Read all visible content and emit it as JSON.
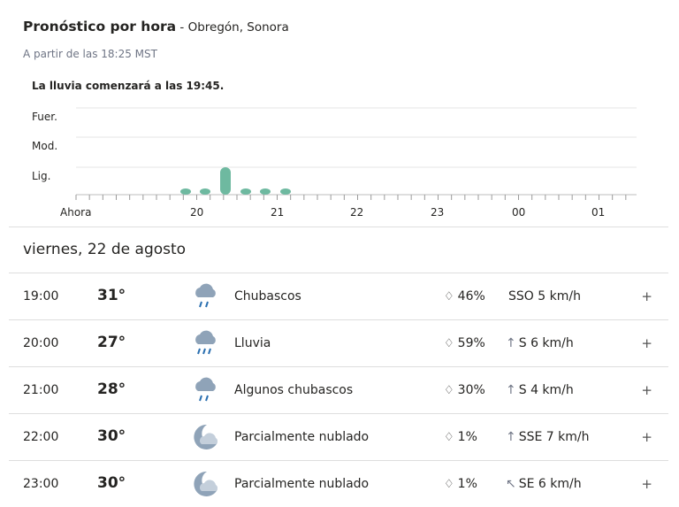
{
  "header": {
    "title": "Pronóstico por hora",
    "separator": " - ",
    "location": "Obregón, Sonora",
    "as_of": "A partir de las 18:25 MST"
  },
  "chart": {
    "message": "La lluvia comenzará a las 19:45.",
    "y_labels": [
      "Fuer.",
      "Mod.",
      "Lig."
    ],
    "x_labels": [
      "Ahora",
      "20",
      "21",
      "22",
      "23",
      "00",
      "01"
    ],
    "bar_color": "#6eb9a0"
  },
  "chart_data": {
    "type": "bar",
    "title": "La lluvia comenzará a las 19:45.",
    "xlabel": "",
    "ylabel": "",
    "categories": [
      "Ahora",
      "20",
      "21",
      "22",
      "23",
      "00",
      "01"
    ],
    "series": [
      {
        "values": [
          0,
          0.1,
          0.1,
          1.0,
          0.1,
          0.1,
          0.1
        ]
      }
    ],
    "ylim": [
      0,
      3
    ],
    "y_levels": [
      "Lig.",
      "Mod.",
      "Fuer."
    ],
    "grid": true
  },
  "day": {
    "label": "viernes, 22 de agosto"
  },
  "hours": [
    {
      "time": "19:00",
      "temp": "31°",
      "condition": "Chubascos",
      "precip": "46%",
      "wind": "SSO 5 km/h",
      "wind_arrow": "",
      "icon": "rain-showers-icon"
    },
    {
      "time": "20:00",
      "temp": "27°",
      "condition": "Lluvia",
      "precip": "59%",
      "wind": "S 6 km/h",
      "wind_arrow": "↑",
      "icon": "rain-icon"
    },
    {
      "time": "21:00",
      "temp": "28°",
      "condition": "Algunos chubascos",
      "precip": "30%",
      "wind": "S 4 km/h",
      "wind_arrow": "↑",
      "icon": "rain-showers-icon"
    },
    {
      "time": "22:00",
      "temp": "30°",
      "condition": "Parcialmente nublado",
      "precip": "1%",
      "wind": "SSE 7 km/h",
      "wind_arrow": "↑",
      "icon": "partly-cloudy-night-icon"
    },
    {
      "time": "23:00",
      "temp": "30°",
      "condition": "Parcialmente nublado",
      "precip": "1%",
      "wind": "SE 6 km/h",
      "wind_arrow": "↖",
      "icon": "partly-cloudy-night-icon"
    }
  ],
  "expand_label": "+",
  "drop_glyph": "💧"
}
